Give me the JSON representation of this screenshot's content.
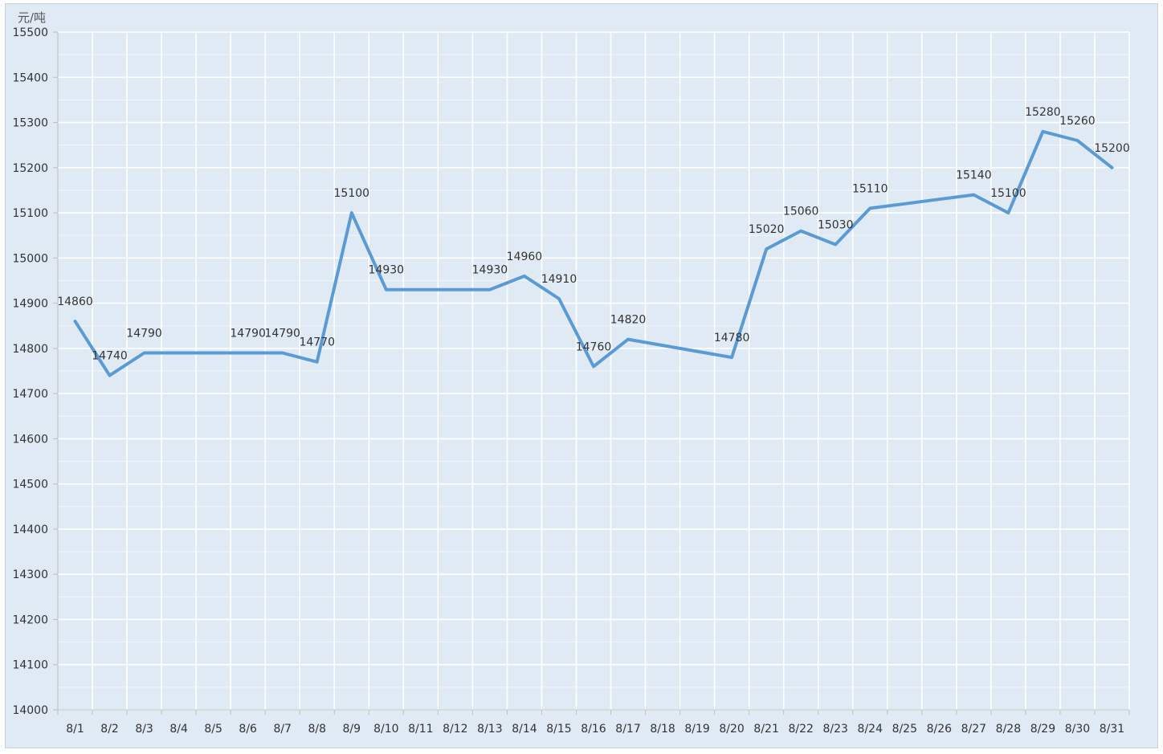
{
  "chart_data": {
    "type": "line",
    "title": "",
    "ylabel": "元/吨",
    "xlabel": "",
    "ylim": [
      14000,
      15500
    ],
    "ytick_step": 100,
    "yticks": [
      "14000",
      "14100",
      "14200",
      "14300",
      "14400",
      "14500",
      "14600",
      "14700",
      "14800",
      "14900",
      "15000",
      "15100",
      "15200",
      "15300",
      "15400",
      "15500"
    ],
    "grid": true,
    "line_color": "#5b9bd5",
    "categories": [
      "8/1",
      "8/2",
      "8/3",
      "8/4",
      "8/5",
      "8/6",
      "8/7",
      "8/8",
      "8/9",
      "8/10",
      "8/11",
      "8/12",
      "8/13",
      "8/14",
      "8/15",
      "8/16",
      "8/17",
      "8/18",
      "8/19",
      "8/20",
      "8/21",
      "8/22",
      "8/23",
      "8/24",
      "8/25",
      "8/26",
      "8/27",
      "8/28",
      "8/29",
      "8/30",
      "8/31"
    ],
    "values": [
      14860,
      14740,
      14790,
      14790,
      14790,
      14790,
      14790,
      14770,
      15100,
      14930,
      14930,
      14930,
      14930,
      14960,
      14910,
      14760,
      14820,
      14806.7,
      14793.3,
      14780,
      15020,
      15060,
      15030,
      15110,
      15120,
      15130,
      15140,
      15100,
      15280,
      15260,
      15200
    ],
    "labeled_points": [
      {
        "index": 0,
        "label": "14860"
      },
      {
        "index": 1,
        "label": "14740"
      },
      {
        "index": 2,
        "label": "14790"
      },
      {
        "index": 5,
        "label": "14790"
      },
      {
        "index": 6,
        "label": "14790"
      },
      {
        "index": 7,
        "label": "14770"
      },
      {
        "index": 8,
        "label": "15100"
      },
      {
        "index": 9,
        "label": "14930"
      },
      {
        "index": 12,
        "label": "14930"
      },
      {
        "index": 13,
        "label": "14960"
      },
      {
        "index": 14,
        "label": "14910"
      },
      {
        "index": 15,
        "label": "14760"
      },
      {
        "index": 16,
        "label": "14820"
      },
      {
        "index": 19,
        "label": "14780"
      },
      {
        "index": 20,
        "label": "15020"
      },
      {
        "index": 21,
        "label": "15060"
      },
      {
        "index": 22,
        "label": "15030"
      },
      {
        "index": 23,
        "label": "15110"
      },
      {
        "index": 26,
        "label": "15140"
      },
      {
        "index": 27,
        "label": "15100"
      },
      {
        "index": 28,
        "label": "15280"
      },
      {
        "index": 29,
        "label": "15260"
      },
      {
        "index": 30,
        "label": "15200"
      }
    ]
  }
}
